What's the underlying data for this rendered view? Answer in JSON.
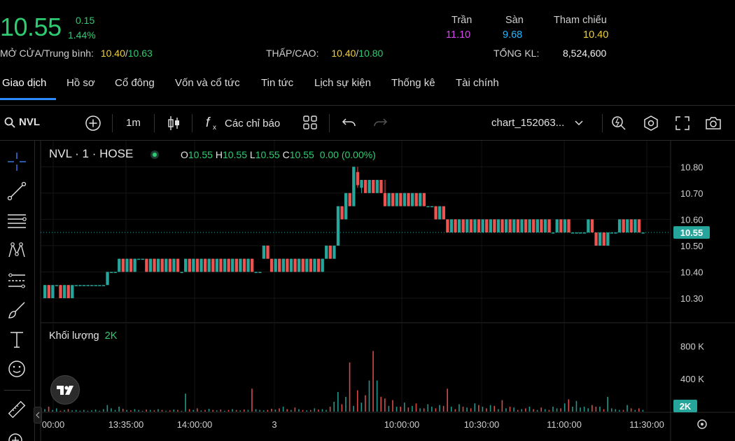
{
  "quote": {
    "price": "10.55",
    "change": "0.15",
    "change_pct": "1.44%",
    "open_avg_label": "MỞ CỬA/Trung bình:",
    "open": "10.40",
    "avg": "10.63",
    "lowhigh_label": "THẤP/CAO:",
    "low": "10.40",
    "high": "10.80",
    "ceiling_label": "Trần",
    "ceiling": "11.10",
    "floor_label": "Sàn",
    "floor": "9.68",
    "ref_label": "Tham chiếu",
    "ref": "10.40",
    "total_vol_label": "TỔNG KL:",
    "total_vol": "8,524,600"
  },
  "tabs": [
    {
      "label": "Giao dịch",
      "active": true
    },
    {
      "label": "Hồ sơ"
    },
    {
      "label": "Cổ đông"
    },
    {
      "label": "Vốn và cổ tức"
    },
    {
      "label": "Tin tức"
    },
    {
      "label": "Lịch sự kiện"
    },
    {
      "label": "Thống kê"
    },
    {
      "label": "Tài chính"
    }
  ],
  "toolbar": {
    "symbol": "NVL",
    "interval": "1m",
    "indicators": "Các chỉ báo",
    "chart_name": "chart_152063..."
  },
  "legend": {
    "title": "NVL · 1 · HOSE",
    "o": "10.55",
    "h": "10.55",
    "l": "10.55",
    "c": "10.55",
    "chg": "0.00 (0.00%)",
    "vol_title": "Khối lượng",
    "vol_value": "2K"
  },
  "colors": {
    "up": "#26a69a",
    "down": "#ef5350",
    "green": "#2ecc71",
    "yellow": "#f0d03c",
    "purple": "#d946ef",
    "cyan": "#22b8ff"
  },
  "chart_data": {
    "type": "candlestick",
    "price_ticks": [
      "10.80",
      "10.70",
      "10.60",
      "10.50",
      "10.40",
      "10.30"
    ],
    "price_ylim": [
      10.26,
      10.83
    ],
    "last_price_label": "10.55",
    "volume_ticks": [
      "800 K",
      "400 K"
    ],
    "volume_last_label": "2K",
    "time_ticks": [
      "00:00",
      "13:35:00",
      "14:00:00",
      "3",
      "10:00:00",
      "10:30:00",
      "11:00:00",
      "11:30:00"
    ],
    "candles": [
      [
        10.3,
        10.35,
        10.3,
        10.35
      ],
      [
        10.35,
        10.35,
        10.3,
        10.3
      ],
      [
        10.3,
        10.35,
        10.3,
        10.35
      ],
      [
        10.35,
        10.35,
        10.35,
        10.35
      ],
      [
        10.35,
        10.35,
        10.3,
        10.3
      ],
      [
        10.3,
        10.35,
        10.3,
        10.35
      ],
      [
        10.35,
        10.35,
        10.3,
        10.3
      ],
      [
        10.3,
        10.35,
        10.3,
        10.35
      ],
      [
        10.35,
        10.35,
        10.35,
        10.35
      ],
      [
        10.35,
        10.35,
        10.35,
        10.35
      ],
      [
        10.35,
        10.35,
        10.35,
        10.35
      ],
      [
        10.35,
        10.35,
        10.35,
        10.35
      ],
      [
        10.35,
        10.35,
        10.35,
        10.35
      ],
      [
        10.35,
        10.35,
        10.35,
        10.35
      ],
      [
        10.35,
        10.35,
        10.35,
        10.35
      ],
      [
        10.35,
        10.35,
        10.35,
        10.35
      ],
      [
        10.35,
        10.4,
        10.35,
        10.4
      ],
      [
        10.4,
        10.4,
        10.4,
        10.4
      ],
      [
        10.4,
        10.4,
        10.4,
        10.4
      ],
      [
        10.4,
        10.45,
        10.4,
        10.45
      ],
      [
        10.45,
        10.45,
        10.4,
        10.4
      ],
      [
        10.4,
        10.45,
        10.4,
        10.45
      ],
      [
        10.45,
        10.45,
        10.4,
        10.4
      ],
      [
        10.4,
        10.45,
        10.4,
        10.45
      ],
      [
        10.45,
        10.45,
        10.45,
        10.45
      ],
      [
        10.45,
        10.45,
        10.45,
        10.45
      ],
      [
        10.45,
        10.45,
        10.4,
        10.4
      ],
      [
        10.4,
        10.45,
        10.4,
        10.45
      ],
      [
        10.45,
        10.45,
        10.4,
        10.4
      ],
      [
        10.4,
        10.45,
        10.4,
        10.45
      ],
      [
        10.45,
        10.45,
        10.4,
        10.4
      ],
      [
        10.4,
        10.45,
        10.4,
        10.45
      ],
      [
        10.45,
        10.45,
        10.4,
        10.4
      ],
      [
        10.4,
        10.45,
        10.4,
        10.45
      ],
      [
        10.45,
        10.45,
        10.4,
        10.4
      ],
      [
        10.4,
        10.4,
        10.4,
        10.4
      ],
      [
        10.4,
        10.45,
        10.4,
        10.45
      ],
      [
        10.45,
        10.45,
        10.4,
        10.4
      ],
      [
        10.4,
        10.45,
        10.4,
        10.45
      ],
      [
        10.45,
        10.45,
        10.4,
        10.4
      ],
      [
        10.4,
        10.45,
        10.4,
        10.45
      ],
      [
        10.45,
        10.45,
        10.4,
        10.4
      ],
      [
        10.4,
        10.45,
        10.4,
        10.45
      ],
      [
        10.45,
        10.45,
        10.4,
        10.4
      ],
      [
        10.4,
        10.45,
        10.4,
        10.45
      ],
      [
        10.45,
        10.45,
        10.4,
        10.4
      ],
      [
        10.4,
        10.45,
        10.4,
        10.45
      ],
      [
        10.45,
        10.45,
        10.4,
        10.4
      ],
      [
        10.4,
        10.45,
        10.4,
        10.45
      ],
      [
        10.45,
        10.45,
        10.4,
        10.4
      ],
      [
        10.4,
        10.45,
        10.4,
        10.45
      ],
      [
        10.45,
        10.45,
        10.4,
        10.4
      ],
      [
        10.4,
        10.45,
        10.4,
        10.45
      ],
      [
        10.45,
        10.45,
        10.4,
        10.4
      ],
      [
        10.4,
        10.4,
        10.4,
        10.4
      ],
      [
        10.4,
        10.4,
        10.4,
        10.4
      ],
      [
        10.45,
        10.5,
        10.45,
        10.5
      ],
      [
        10.5,
        10.5,
        10.45,
        10.45
      ],
      [
        10.45,
        10.45,
        10.4,
        10.4
      ],
      [
        10.4,
        10.45,
        10.4,
        10.45
      ],
      [
        10.45,
        10.45,
        10.4,
        10.4
      ],
      [
        10.4,
        10.45,
        10.4,
        10.45
      ],
      [
        10.45,
        10.45,
        10.4,
        10.4
      ],
      [
        10.4,
        10.45,
        10.4,
        10.45
      ],
      [
        10.45,
        10.45,
        10.4,
        10.4
      ],
      [
        10.4,
        10.45,
        10.4,
        10.45
      ],
      [
        10.45,
        10.45,
        10.4,
        10.4
      ],
      [
        10.4,
        10.45,
        10.4,
        10.45
      ],
      [
        10.45,
        10.45,
        10.4,
        10.4
      ],
      [
        10.4,
        10.45,
        10.4,
        10.45
      ],
      [
        10.45,
        10.45,
        10.4,
        10.4
      ],
      [
        10.4,
        10.45,
        10.4,
        10.45
      ],
      [
        10.45,
        10.5,
        10.45,
        10.5
      ],
      [
        10.5,
        10.5,
        10.45,
        10.45
      ],
      [
        10.45,
        10.5,
        10.45,
        10.5
      ],
      [
        10.5,
        10.65,
        10.5,
        10.65
      ],
      [
        10.65,
        10.65,
        10.6,
        10.6
      ],
      [
        10.6,
        10.7,
        10.6,
        10.7
      ],
      [
        10.7,
        10.7,
        10.65,
        10.65
      ],
      [
        10.65,
        10.8,
        10.65,
        10.8
      ],
      [
        10.78,
        10.8,
        10.72,
        10.73
      ],
      [
        10.72,
        10.75,
        10.7,
        10.75
      ],
      [
        10.75,
        10.75,
        10.7,
        10.7
      ],
      [
        10.7,
        10.75,
        10.7,
        10.75
      ],
      [
        10.75,
        10.75,
        10.7,
        10.7
      ],
      [
        10.7,
        10.75,
        10.7,
        10.75
      ],
      [
        10.75,
        10.75,
        10.7,
        10.7
      ],
      [
        10.7,
        10.75,
        10.65,
        10.65
      ],
      [
        10.65,
        10.7,
        10.65,
        10.7
      ],
      [
        10.7,
        10.7,
        10.65,
        10.65
      ],
      [
        10.65,
        10.7,
        10.65,
        10.7
      ],
      [
        10.7,
        10.7,
        10.65,
        10.65
      ],
      [
        10.65,
        10.7,
        10.65,
        10.7
      ],
      [
        10.7,
        10.7,
        10.65,
        10.65
      ],
      [
        10.65,
        10.7,
        10.65,
        10.7
      ],
      [
        10.7,
        10.7,
        10.65,
        10.65
      ],
      [
        10.65,
        10.7,
        10.65,
        10.7
      ],
      [
        10.7,
        10.7,
        10.65,
        10.65
      ],
      [
        10.65,
        10.65,
        10.65,
        10.65
      ],
      [
        10.65,
        10.65,
        10.65,
        10.65
      ],
      [
        10.65,
        10.65,
        10.6,
        10.6
      ],
      [
        10.6,
        10.65,
        10.6,
        10.65
      ],
      [
        10.65,
        10.65,
        10.6,
        10.6
      ],
      [
        10.6,
        10.6,
        10.55,
        10.55
      ],
      [
        10.55,
        10.6,
        10.55,
        10.6
      ],
      [
        10.6,
        10.6,
        10.55,
        10.55
      ],
      [
        10.55,
        10.6,
        10.55,
        10.6
      ],
      [
        10.6,
        10.6,
        10.55,
        10.55
      ],
      [
        10.55,
        10.6,
        10.55,
        10.6
      ],
      [
        10.6,
        10.6,
        10.55,
        10.55
      ],
      [
        10.55,
        10.6,
        10.55,
        10.6
      ],
      [
        10.6,
        10.6,
        10.55,
        10.55
      ],
      [
        10.55,
        10.6,
        10.55,
        10.6
      ],
      [
        10.6,
        10.6,
        10.55,
        10.55
      ],
      [
        10.55,
        10.6,
        10.55,
        10.6
      ],
      [
        10.6,
        10.6,
        10.55,
        10.55
      ],
      [
        10.55,
        10.6,
        10.55,
        10.6
      ],
      [
        10.6,
        10.6,
        10.55,
        10.55
      ],
      [
        10.55,
        10.6,
        10.55,
        10.6
      ],
      [
        10.6,
        10.6,
        10.55,
        10.55
      ],
      [
        10.55,
        10.6,
        10.55,
        10.6
      ],
      [
        10.6,
        10.6,
        10.55,
        10.55
      ],
      [
        10.55,
        10.6,
        10.55,
        10.6
      ],
      [
        10.6,
        10.6,
        10.55,
        10.55
      ],
      [
        10.55,
        10.6,
        10.55,
        10.6
      ],
      [
        10.6,
        10.6,
        10.55,
        10.55
      ],
      [
        10.55,
        10.6,
        10.55,
        10.6
      ],
      [
        10.6,
        10.6,
        10.55,
        10.55
      ],
      [
        10.55,
        10.6,
        10.55,
        10.6
      ],
      [
        10.6,
        10.6,
        10.55,
        10.55
      ],
      [
        10.55,
        10.55,
        10.55,
        10.55
      ],
      [
        10.55,
        10.6,
        10.55,
        10.6
      ],
      [
        10.6,
        10.6,
        10.55,
        10.55
      ],
      [
        10.55,
        10.6,
        10.55,
        10.6
      ],
      [
        10.6,
        10.6,
        10.55,
        10.55
      ],
      [
        10.55,
        10.55,
        10.55,
        10.55
      ],
      [
        10.55,
        10.55,
        10.55,
        10.55
      ],
      [
        10.55,
        10.55,
        10.55,
        10.55
      ],
      [
        10.55,
        10.55,
        10.55,
        10.55
      ],
      [
        10.55,
        10.6,
        10.55,
        10.6
      ],
      [
        10.6,
        10.6,
        10.55,
        10.55
      ],
      [
        10.55,
        10.55,
        10.5,
        10.5
      ],
      [
        10.5,
        10.55,
        10.5,
        10.55
      ],
      [
        10.55,
        10.55,
        10.5,
        10.5
      ],
      [
        10.5,
        10.55,
        10.5,
        10.55
      ],
      [
        10.55,
        10.55,
        10.55,
        10.55
      ],
      [
        10.55,
        10.55,
        10.55,
        10.55
      ],
      [
        10.55,
        10.6,
        10.55,
        10.6
      ],
      [
        10.6,
        10.6,
        10.55,
        10.55
      ],
      [
        10.55,
        10.6,
        10.55,
        10.6
      ],
      [
        10.6,
        10.6,
        10.55,
        10.55
      ],
      [
        10.55,
        10.6,
        10.55,
        10.6
      ],
      [
        10.6,
        10.6,
        10.55,
        10.55
      ],
      [
        10.55,
        10.55,
        10.55,
        10.55
      ]
    ],
    "volumes": [
      30,
      60,
      20,
      40,
      10,
      20,
      30,
      15,
      20,
      10,
      20,
      10,
      15,
      25,
      10,
      30,
      80,
      40,
      20,
      60,
      35,
      20,
      15,
      30,
      20,
      10,
      25,
      20,
      15,
      30,
      20,
      10,
      15,
      25,
      20,
      10,
      220,
      30,
      20,
      40,
      15,
      20,
      35,
      20,
      15,
      25,
      10,
      20,
      30,
      20,
      15,
      25,
      20,
      280,
      30,
      20,
      15,
      20,
      35,
      25,
      40,
      60,
      30,
      20,
      50,
      30,
      20,
      15,
      20,
      40,
      25,
      30,
      20,
      60,
      120,
      240,
      90,
      180,
      600,
      70,
      260,
      110,
      200,
      380,
      740,
      380,
      180,
      160,
      70,
      140,
      60,
      60,
      110,
      50,
      70,
      100,
      40,
      40,
      90,
      60,
      40,
      80,
      70,
      280,
      60,
      30,
      90,
      60,
      50,
      40,
      100,
      80,
      60,
      40,
      80,
      70,
      30,
      140,
      40,
      60,
      50,
      20,
      30,
      40,
      60,
      30,
      20,
      50,
      30,
      20,
      60,
      40,
      40,
      100,
      150,
      60,
      130,
      50,
      60,
      40,
      80,
      60,
      60,
      30,
      180,
      40,
      30,
      20,
      20,
      80,
      40,
      20,
      40,
      20
    ],
    "volume_ylim": [
      0,
      1000
    ]
  }
}
